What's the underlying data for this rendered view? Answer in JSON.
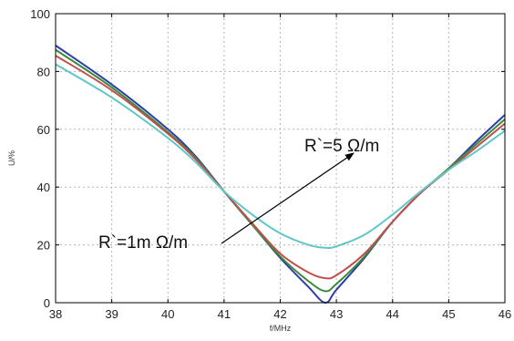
{
  "chart_data": {
    "type": "line",
    "xlabel": "f/MHz",
    "ylabel": "U/%",
    "xlim": [
      38,
      46
    ],
    "ylim": [
      0,
      100
    ],
    "xticks": [
      38,
      39,
      40,
      41,
      42,
      43,
      44,
      45,
      46
    ],
    "yticks": [
      0,
      20,
      40,
      60,
      80,
      100
    ],
    "grid": true,
    "legend": "none",
    "series": [
      {
        "color": "#2b3da8",
        "points": [
          [
            38,
            89
          ],
          [
            39,
            75.5
          ],
          [
            40,
            60
          ],
          [
            40.5,
            50.5
          ],
          [
            41,
            38.5
          ],
          [
            41.5,
            27
          ],
          [
            42,
            15.5
          ],
          [
            42.5,
            5.5
          ],
          [
            42.8,
            0
          ],
          [
            43,
            4.5
          ],
          [
            43.5,
            15.5
          ],
          [
            44,
            28
          ],
          [
            44.5,
            38
          ],
          [
            45,
            46.5
          ],
          [
            45.5,
            56
          ],
          [
            46,
            65
          ]
        ]
      },
      {
        "color": "#3a8a3a",
        "points": [
          [
            38,
            87.5
          ],
          [
            39,
            74.5
          ],
          [
            40,
            59
          ],
          [
            40.5,
            50
          ],
          [
            41,
            38.5
          ],
          [
            41.5,
            27
          ],
          [
            42,
            16
          ],
          [
            42.5,
            7.5
          ],
          [
            42.8,
            4
          ],
          [
            43,
            6.5
          ],
          [
            43.5,
            16
          ],
          [
            44,
            28
          ],
          [
            44.5,
            38
          ],
          [
            45,
            46.5
          ],
          [
            45.5,
            55
          ],
          [
            46,
            63.5
          ]
        ]
      },
      {
        "color": "#c0504d",
        "points": [
          [
            38,
            85.5
          ],
          [
            39,
            73.5
          ],
          [
            40,
            58.5
          ],
          [
            40.5,
            49.5
          ],
          [
            41,
            38.5
          ],
          [
            41.5,
            27.5
          ],
          [
            42,
            17
          ],
          [
            42.5,
            10.5
          ],
          [
            42.8,
            8.5
          ],
          [
            43,
            9.5
          ],
          [
            43.5,
            17
          ],
          [
            44,
            28
          ],
          [
            44.5,
            38
          ],
          [
            45,
            46
          ],
          [
            45.5,
            54
          ],
          [
            46,
            62
          ]
        ]
      },
      {
        "color": "#5fc7c7",
        "points": [
          [
            38,
            82.5
          ],
          [
            39,
            71
          ],
          [
            40,
            57
          ],
          [
            40.5,
            48.5
          ],
          [
            41,
            38.5
          ],
          [
            41.5,
            30.5
          ],
          [
            42,
            24
          ],
          [
            42.5,
            20
          ],
          [
            42.8,
            19
          ],
          [
            43,
            19.5
          ],
          [
            43.5,
            23.5
          ],
          [
            44,
            30.5
          ],
          [
            44.5,
            38.5
          ],
          [
            45,
            46
          ],
          [
            45.5,
            52.5
          ],
          [
            46,
            59.5
          ]
        ]
      }
    ],
    "annotations": [
      {
        "label": "R`=1m Ω/m"
      },
      {
        "label": "R`=5 Ω/m"
      }
    ]
  }
}
